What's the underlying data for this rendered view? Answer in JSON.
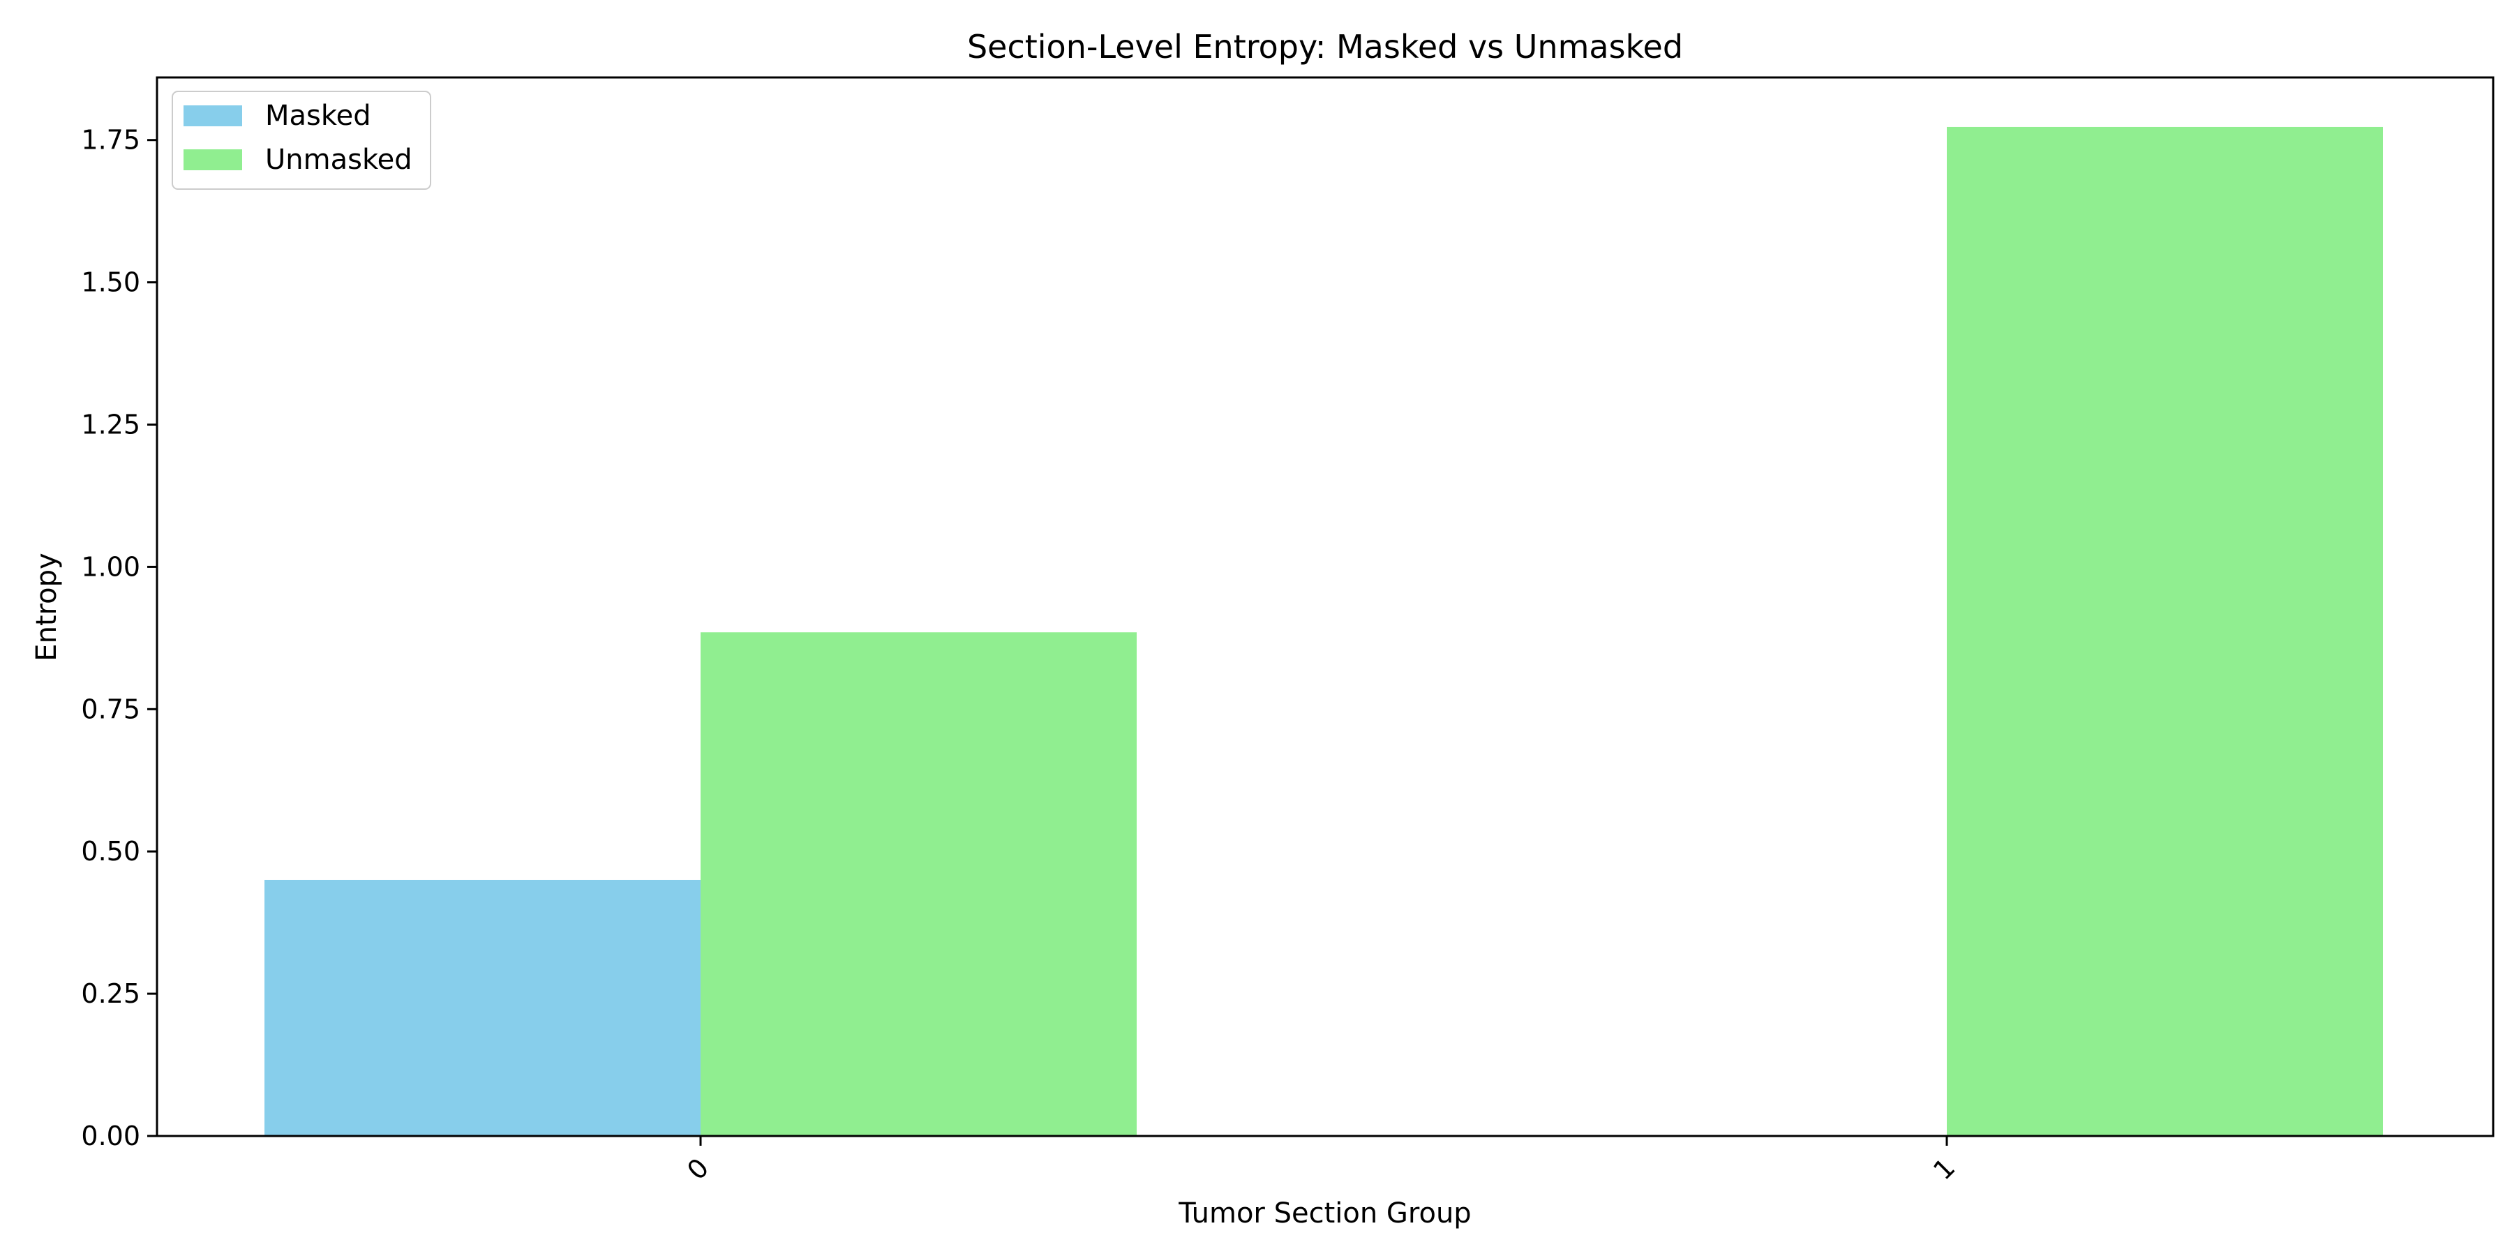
{
  "chart_data": {
    "type": "bar",
    "title": "Section-Level Entropy: Masked vs Unmasked",
    "xlabel": "Tumor Section Group",
    "ylabel": "Entropy",
    "categories": [
      "0",
      "1"
    ],
    "series": [
      {
        "name": "Masked",
        "color": "#87ceeb",
        "values": [
          0.45,
          0.0
        ]
      },
      {
        "name": "Unmasked",
        "color": "#90ee90",
        "values": [
          0.885,
          1.773
        ]
      }
    ],
    "ylim": [
      0,
      1.86
    ],
    "yticks": [
      "0.00",
      "0.25",
      "0.50",
      "0.75",
      "1.00",
      "1.25",
      "1.50",
      "1.75"
    ],
    "legend_position": "top-left",
    "grid": false
  }
}
